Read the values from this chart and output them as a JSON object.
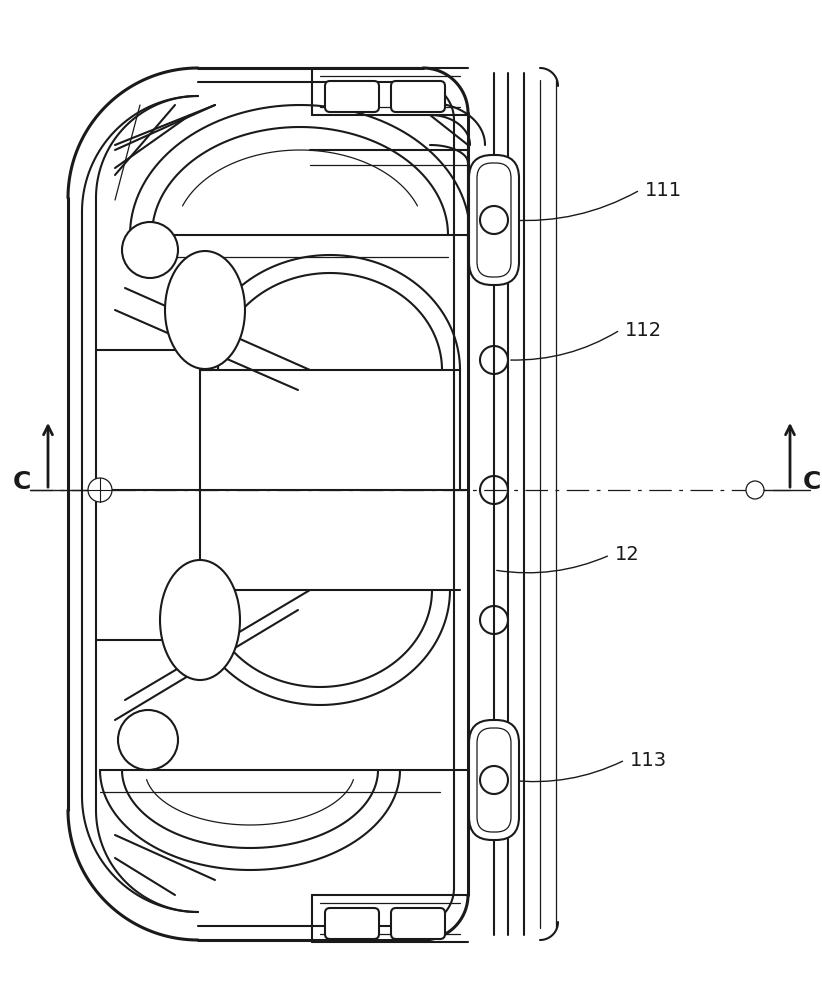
{
  "bg": "#ffffff",
  "lc": "#1a1a1a",
  "label_111": "111",
  "label_112": "112",
  "label_12": "12",
  "label_113": "113",
  "label_C": "C",
  "lw_outer": 2.2,
  "lw_main": 1.5,
  "lw_thin": 0.9,
  "font_size": 14,
  "fig_w": 8.22,
  "fig_h": 10.0,
  "dpi": 100
}
